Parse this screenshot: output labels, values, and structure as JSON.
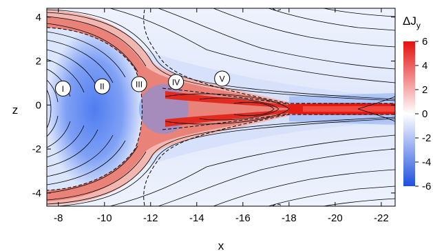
{
  "chart_data": {
    "type": "heatmap",
    "xlabel": "x",
    "ylabel": "z",
    "xlim": [
      -7.5,
      -22.6
    ],
    "ylim": [
      -4.6,
      4.4
    ],
    "x_direction": "decreasing to the right",
    "x_ticks": [
      -8,
      -10,
      -12,
      -14,
      -16,
      -18,
      -20,
      -22
    ],
    "x_tick_labels": [
      "-8",
      "-10",
      "-12",
      "-14",
      "-16",
      "-18",
      "-20",
      "-22"
    ],
    "y_ticks": [
      4,
      2,
      0,
      -2,
      -4
    ],
    "y_tick_labels": [
      "4",
      "2",
      "0",
      "-2",
      "-4"
    ],
    "colorbar": {
      "label": "ΔJ",
      "label_subscript": "y",
      "range": [
        -6,
        6
      ],
      "ticks": [
        6,
        4,
        2,
        0,
        -2,
        -4,
        -6
      ],
      "tick_labels": [
        "6",
        "4",
        "2",
        "0",
        "-2",
        "-4",
        "-6"
      ],
      "colors": [
        "#1f4fe0",
        "#ffffff",
        "#e31010"
      ]
    },
    "regions": [
      {
        "label": "I",
        "x": -8.2,
        "z": 0.75
      },
      {
        "label": "II",
        "x": -9.9,
        "z": 0.85
      },
      {
        "label": "III",
        "x": -11.5,
        "z": 0.95
      },
      {
        "label": "IV",
        "x": -13.1,
        "z": 1.05
      },
      {
        "label": "V",
        "x": -15.1,
        "z": 1.2
      }
    ],
    "field_lines": "black solid contours",
    "zero_contour": "black dashed contours"
  }
}
